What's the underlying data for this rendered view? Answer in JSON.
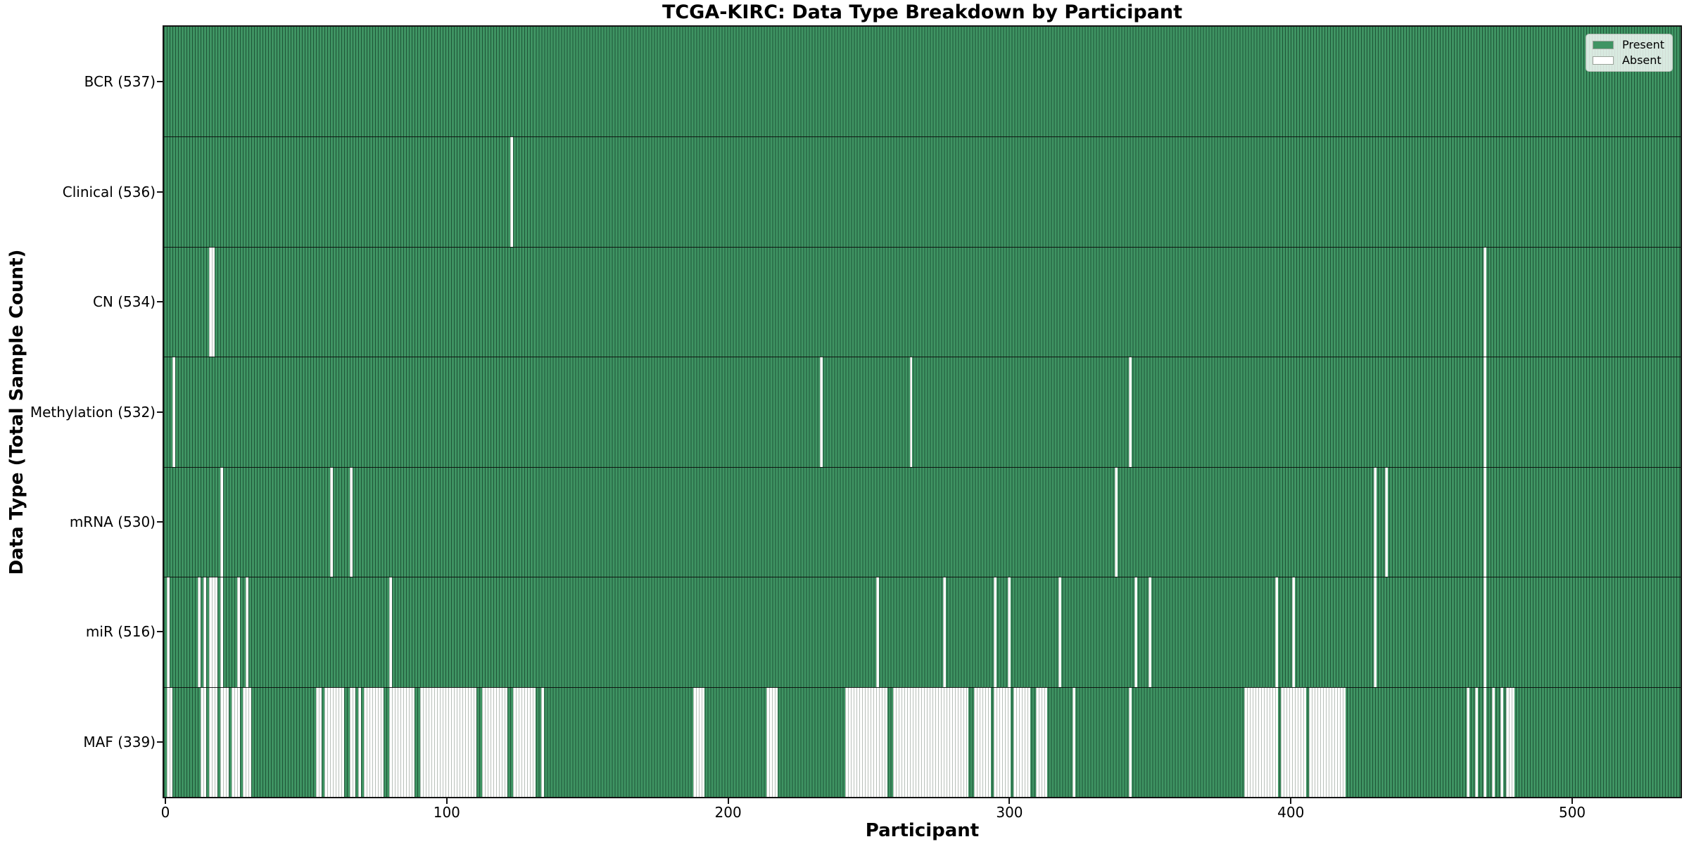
{
  "title": "TCGA-KIRC: Data Type Breakdown by Participant",
  "legend": {
    "present_label": "Present",
    "absent_label": "Absent"
  },
  "colors": {
    "present": "#3f9463",
    "present_bar_edge": "#1e4931",
    "absent": "#ffffff",
    "absent_bar_edge": "#9aa39a",
    "axis": "#141414"
  },
  "chart_data": {
    "type": "heatmap",
    "title": "TCGA-KIRC: Data Type Breakdown by Participant",
    "xlabel": "Participant",
    "ylabel": "Data Type (Total Sample Count)",
    "legend_entries": [
      "Present",
      "Absent"
    ],
    "legend_position": "upper right",
    "grid": false,
    "n_participants": 537,
    "x_ticks": [
      0,
      100,
      200,
      300,
      400,
      500
    ],
    "x_range": [
      -0.5,
      537.5
    ],
    "rows": [
      {
        "name": "BCR",
        "label": "BCR (537)",
        "present_count": 537,
        "absent_count": 0,
        "absent_ranges": []
      },
      {
        "name": "Clinical",
        "label": "Clinical (536)",
        "present_count": 536,
        "absent_count": 1,
        "absent_ranges": [
          [
            123,
            123
          ]
        ]
      },
      {
        "name": "CN",
        "label": "CN (534)",
        "present_count": 534,
        "absent_count": 3,
        "absent_ranges": [
          [
            16,
            17
          ],
          [
            469,
            469
          ]
        ]
      },
      {
        "name": "Methylation",
        "label": "Methylation (532)",
        "present_count": 532,
        "absent_count": 5,
        "absent_ranges": [
          [
            3,
            3
          ],
          [
            233,
            233
          ],
          [
            265,
            265
          ],
          [
            343,
            343
          ],
          [
            469,
            469
          ]
        ]
      },
      {
        "name": "mRNA",
        "label": "mRNA (530)",
        "present_count": 530,
        "absent_count": 7,
        "absent_ranges": [
          [
            20,
            20
          ],
          [
            59,
            59
          ],
          [
            66,
            66
          ],
          [
            338,
            338
          ],
          [
            430,
            430
          ],
          [
            434,
            434
          ],
          [
            469,
            469
          ]
        ]
      },
      {
        "name": "miR",
        "label": "miR (516)",
        "present_count": 516,
        "absent_count": 21,
        "absent_ranges": [
          [
            1,
            1
          ],
          [
            12,
            12
          ],
          [
            14,
            14
          ],
          [
            16,
            18
          ],
          [
            20,
            20
          ],
          [
            26,
            26
          ],
          [
            29,
            29
          ],
          [
            80,
            80
          ],
          [
            253,
            253
          ],
          [
            277,
            277
          ],
          [
            295,
            295
          ],
          [
            300,
            300
          ],
          [
            318,
            318
          ],
          [
            345,
            345
          ],
          [
            350,
            350
          ],
          [
            395,
            395
          ],
          [
            401,
            401
          ],
          [
            430,
            430
          ],
          [
            469,
            469
          ]
        ]
      },
      {
        "name": "MAF",
        "label": "MAF (339)",
        "present_count": 339,
        "absent_count": 198,
        "absent_ranges": [
          [
            1,
            2
          ],
          [
            13,
            14
          ],
          [
            16,
            18
          ],
          [
            20,
            22
          ],
          [
            24,
            26
          ],
          [
            28,
            30
          ],
          [
            54,
            55
          ],
          [
            57,
            63
          ],
          [
            66,
            67
          ],
          [
            69,
            69
          ],
          [
            71,
            77
          ],
          [
            80,
            88
          ],
          [
            91,
            110
          ],
          [
            113,
            121
          ],
          [
            124,
            131
          ],
          [
            134,
            134
          ],
          [
            188,
            191
          ],
          [
            214,
            217
          ],
          [
            242,
            256
          ],
          [
            259,
            285
          ],
          [
            288,
            293
          ],
          [
            295,
            300
          ],
          [
            302,
            307
          ],
          [
            310,
            313
          ],
          [
            323,
            323
          ],
          [
            343,
            343
          ],
          [
            384,
            395
          ],
          [
            397,
            405
          ],
          [
            407,
            419
          ],
          [
            463,
            463
          ],
          [
            466,
            466
          ],
          [
            469,
            469
          ],
          [
            472,
            472
          ],
          [
            475,
            475
          ],
          [
            477,
            479
          ]
        ]
      }
    ]
  }
}
